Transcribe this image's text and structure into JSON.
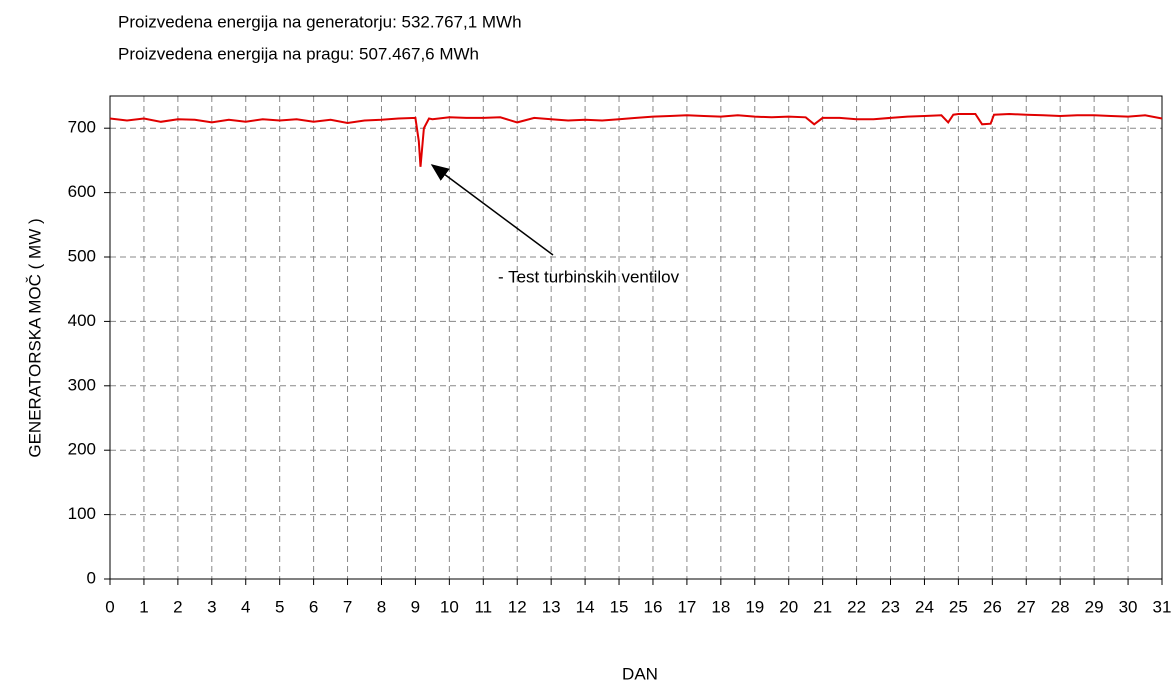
{
  "chart_data": {
    "type": "line",
    "subtitle_lines": [
      "Proizvedena energija na generatorju: 532.767,1 MWh",
      "Proizvedena energija na pragu:   507.467,6 MWh"
    ],
    "x_label": "DAN",
    "y_label": "GENERATORSKA MOČ  ( MW )",
    "annotation": "- Test turbinskih ventilov",
    "x": [
      0,
      0.5,
      1,
      1.5,
      2,
      2.5,
      3,
      3.5,
      4,
      4.5,
      5,
      5.5,
      6,
      6.5,
      7,
      7.5,
      8,
      8.5,
      9,
      9.1,
      9.15,
      9.25,
      9.4,
      9.5,
      10,
      10.5,
      11,
      11.5,
      12,
      12.5,
      13,
      13.5,
      14,
      14.5,
      15,
      15.5,
      16,
      16.5,
      17,
      17.5,
      18,
      18.5,
      19,
      19.5,
      20,
      20.5,
      20.75,
      21,
      21.5,
      22,
      22.5,
      23,
      23.5,
      24,
      24.5,
      24.7,
      24.85,
      25,
      25.5,
      25.7,
      25.95,
      26.05,
      26.5,
      27,
      27.5,
      28,
      28.5,
      29,
      29.5,
      30,
      30.5,
      31
    ],
    "series": [
      {
        "name": "GENERATORSKA MOČ",
        "color": "#e00000",
        "values": [
          715,
          712,
          715,
          710,
          714,
          713,
          709,
          713,
          710,
          714,
          712,
          714,
          710,
          713,
          708,
          712,
          713,
          715,
          716,
          680,
          640,
          700,
          715,
          714,
          717,
          716,
          716,
          717,
          709,
          716,
          714,
          712,
          713,
          712,
          714,
          716,
          718,
          719,
          720,
          719,
          718,
          720,
          718,
          717,
          718,
          717,
          706,
          716,
          716,
          714,
          714,
          716,
          718,
          719,
          720,
          709,
          721,
          722,
          722,
          706,
          707,
          721,
          722,
          721,
          720,
          719,
          720,
          720,
          719,
          718,
          720,
          715
        ]
      }
    ],
    "xlim": [
      0,
      31
    ],
    "xticks": [
      0,
      1,
      2,
      3,
      4,
      5,
      6,
      7,
      8,
      9,
      10,
      11,
      12,
      13,
      14,
      15,
      16,
      17,
      18,
      19,
      20,
      21,
      22,
      23,
      24,
      25,
      26,
      27,
      28,
      29,
      30,
      31
    ],
    "ylim": [
      0,
      750
    ],
    "yticks": [
      0,
      100,
      200,
      300,
      400,
      500,
      600,
      700
    ],
    "grid": true
  }
}
